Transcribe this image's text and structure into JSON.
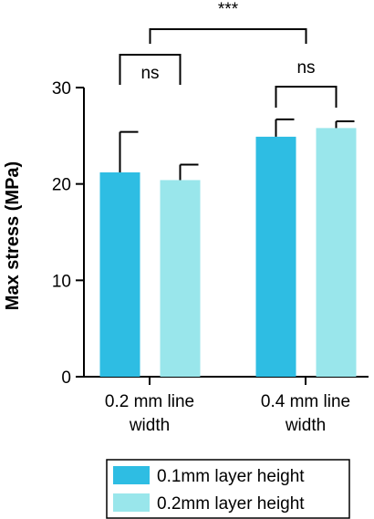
{
  "chart_data": {
    "type": "bar",
    "title": "",
    "ylabel": "Max stress (MPa)",
    "xlabel": "",
    "ylim": [
      0,
      30
    ],
    "yticks": [
      0,
      10,
      20,
      30
    ],
    "categories": [
      [
        "0.2 mm line",
        "width"
      ],
      [
        "0.4 mm line",
        "width"
      ]
    ],
    "series": [
      {
        "name": "0.1mm layer height",
        "color": "#2ebde3",
        "values": [
          21.2,
          24.9
        ],
        "errors": [
          4.2,
          1.8
        ]
      },
      {
        "name": "0.2mm layer height",
        "color": "#99e6eb",
        "values": [
          20.4,
          25.8
        ],
        "errors": [
          1.6,
          0.7
        ]
      }
    ],
    "significance": {
      "within": [
        "ns",
        "ns"
      ],
      "between": "***"
    },
    "legend": {
      "position": "bottom"
    }
  }
}
